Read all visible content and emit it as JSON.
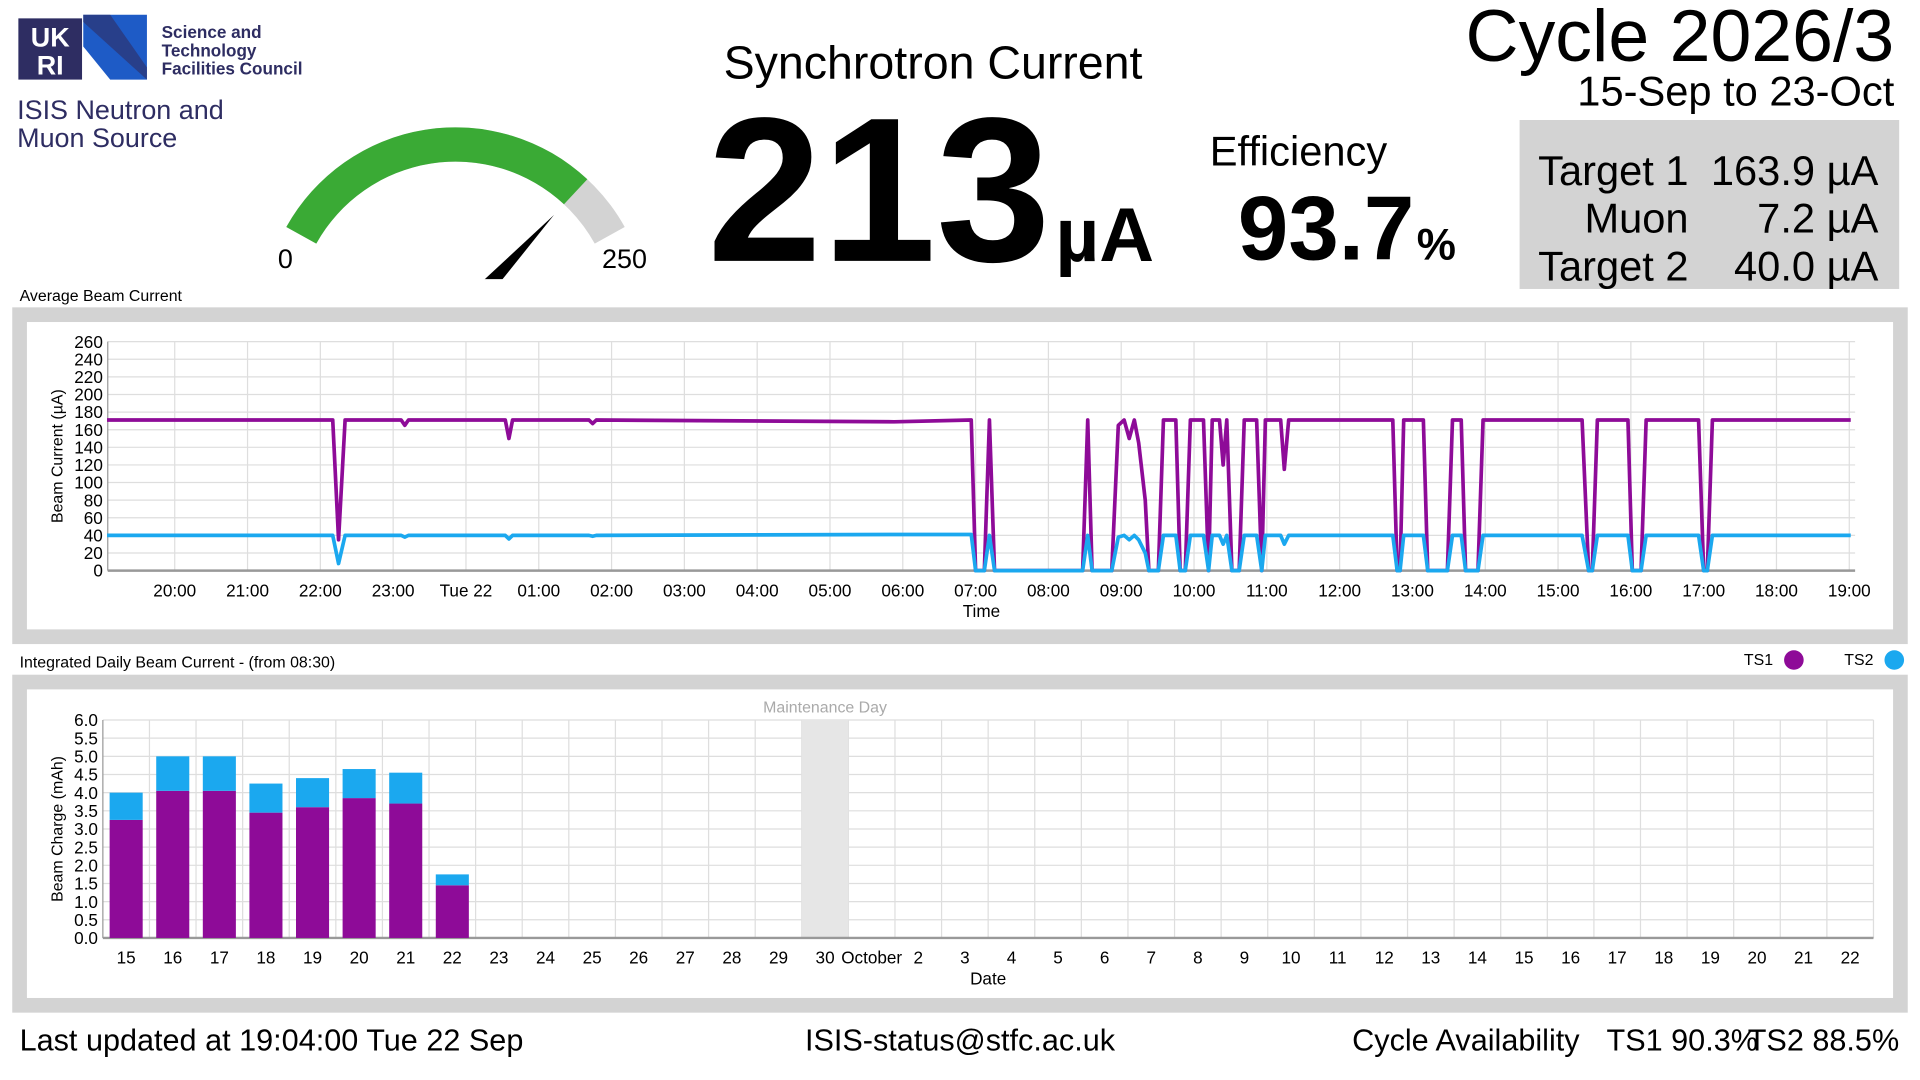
{
  "header": {
    "logo": {
      "top": "UK",
      "bottom": "RI"
    },
    "council": [
      "Science and",
      "Technology",
      "Facilities Council"
    ],
    "source": [
      "ISIS Neutron and",
      "Muon Source"
    ],
    "cycle": "Cycle 2026/3",
    "cycle_dates": "15-Sep to 23-Oct"
  },
  "gauge": {
    "min": 0,
    "max": 250,
    "color": "#3aaa35",
    "track_color": "#d3d3d3"
  },
  "current": {
    "title": "Synchrotron Current",
    "value": 213,
    "unit": "µA"
  },
  "efficiency": {
    "label": "Efficiency",
    "value": 93.7,
    "unit": "%"
  },
  "targets": [
    {
      "name": "Target 1",
      "value": "163.9 µA"
    },
    {
      "name": "Muon",
      "value": "7.2 µA"
    },
    {
      "name": "Target 2",
      "value": "40.0 µA"
    }
  ],
  "chart_data": [
    {
      "type": "line",
      "title": "Average Beam Current",
      "x_label": "Time",
      "y_label": "Beam Current (µA)",
      "x": [
        19.07,
        22.05,
        22.17,
        22.25,
        22.34,
        23.11,
        23.16,
        23.21,
        24.54,
        24.59,
        24.64,
        25.69,
        25.74,
        25.79,
        29.88,
        30.94,
        31.0,
        31.12,
        31.19,
        31.26,
        32.47,
        32.54,
        32.6,
        32.87,
        32.96,
        33.04,
        33.11,
        33.18,
        33.24,
        33.33,
        33.38,
        33.51,
        33.58,
        33.75,
        33.81,
        33.88,
        33.95,
        34.13,
        34.2,
        34.25,
        34.35,
        34.4,
        34.45,
        34.52,
        34.62,
        34.69,
        34.86,
        34.93,
        34.98,
        35.19,
        35.24,
        35.3,
        36.73,
        36.79,
        36.83,
        36.88,
        37.15,
        37.21,
        37.48,
        37.55,
        37.67,
        37.73,
        37.9,
        37.97,
        39.33,
        39.42,
        39.47,
        39.54,
        39.96,
        40.02,
        40.14,
        40.21,
        40.93,
        41.0,
        41.05,
        41.12,
        43.02
      ],
      "series": [
        {
          "color": "#8e0b98",
          "values": [
            171,
            171,
            171,
            35,
            171,
            171,
            165,
            171,
            171,
            150,
            171,
            171,
            167,
            171,
            169,
            171,
            0,
            0,
            171,
            0,
            0,
            171,
            0,
            0,
            165,
            171,
            150,
            171,
            145,
            80,
            0,
            0,
            171,
            171,
            0,
            0,
            171,
            171,
            0,
            171,
            171,
            120,
            171,
            0,
            0,
            171,
            171,
            0,
            171,
            171,
            115,
            171,
            171,
            0,
            0,
            171,
            171,
            0,
            0,
            171,
            171,
            0,
            0,
            171,
            171,
            0,
            0,
            171,
            171,
            0,
            0,
            171,
            171,
            0,
            0,
            171,
            171
          ]
        },
        {
          "color": "#1ba8ef",
          "values": [
            40,
            40,
            40,
            8,
            40,
            40,
            38,
            40,
            40,
            36,
            40,
            40,
            39,
            40,
            41,
            41,
            0,
            0,
            40,
            0,
            0,
            40,
            0,
            0,
            38,
            40,
            35,
            40,
            35,
            20,
            0,
            0,
            40,
            40,
            0,
            0,
            40,
            40,
            0,
            40,
            40,
            30,
            40,
            0,
            0,
            40,
            40,
            0,
            40,
            40,
            30,
            40,
            40,
            0,
            0,
            40,
            40,
            0,
            0,
            40,
            40,
            0,
            0,
            40,
            40,
            0,
            0,
            40,
            40,
            0,
            0,
            40,
            40,
            0,
            0,
            40,
            40
          ]
        }
      ],
      "xlim": [
        19.08,
        43.08
      ],
      "xticks": [
        {
          "value": 20,
          "label": "20:00"
        },
        {
          "value": 21,
          "label": "21:00"
        },
        {
          "value": 22,
          "label": "22:00"
        },
        {
          "value": 23,
          "label": "23:00"
        },
        {
          "value": 24,
          "label": "Tue 22"
        },
        {
          "value": 25,
          "label": "01:00"
        },
        {
          "value": 26,
          "label": "02:00"
        },
        {
          "value": 27,
          "label": "03:00"
        },
        {
          "value": 28,
          "label": "04:00"
        },
        {
          "value": 29,
          "label": "05:00"
        },
        {
          "value": 30,
          "label": "06:00"
        },
        {
          "value": 31,
          "label": "07:00"
        },
        {
          "value": 32,
          "label": "08:00"
        },
        {
          "value": 33,
          "label": "09:00"
        },
        {
          "value": 34,
          "label": "10:00"
        },
        {
          "value": 35,
          "label": "11:00"
        },
        {
          "value": 36,
          "label": "12:00"
        },
        {
          "value": 37,
          "label": "13:00"
        },
        {
          "value": 38,
          "label": "14:00"
        },
        {
          "value": 39,
          "label": "15:00"
        },
        {
          "value": 40,
          "label": "16:00"
        },
        {
          "value": 41,
          "label": "17:00"
        },
        {
          "value": 42,
          "label": "18:00"
        },
        {
          "value": 43,
          "label": "19:00"
        }
      ],
      "ylim": [
        0,
        260
      ],
      "yticks": [
        0,
        20,
        40,
        60,
        80,
        100,
        120,
        140,
        160,
        180,
        200,
        220,
        240,
        260
      ],
      "grid": true
    },
    {
      "type": "bar",
      "stacked": true,
      "title": "Integrated Daily Beam Current - (from 08:30)",
      "x_label": "Date",
      "y_label": "Beam Charge (mAh)",
      "categories": [
        "15",
        "16",
        "17",
        "18",
        "19",
        "20",
        "21",
        "22",
        "23",
        "24",
        "25",
        "26",
        "27",
        "28",
        "29",
        "30",
        "October",
        "2",
        "3",
        "4",
        "5",
        "6",
        "7",
        "8",
        "9",
        "10",
        "11",
        "12",
        "13",
        "14",
        "15",
        "16",
        "17",
        "18",
        "19",
        "20",
        "21",
        "22"
      ],
      "series": [
        {
          "name": "TS1",
          "color": "#8e0b98",
          "values": [
            3.25,
            4.05,
            4.05,
            3.45,
            3.6,
            3.85,
            3.7,
            1.45,
            null,
            null,
            null,
            null,
            null,
            null,
            null,
            null,
            null,
            null,
            null,
            null,
            null,
            null,
            null,
            null,
            null,
            null,
            null,
            null,
            null,
            null,
            null,
            null,
            null,
            null,
            null,
            null,
            null,
            null
          ]
        },
        {
          "name": "TS2",
          "color": "#1ba8ef",
          "values": [
            0.75,
            0.95,
            0.95,
            0.8,
            0.8,
            0.8,
            0.85,
            0.3,
            null,
            null,
            null,
            null,
            null,
            null,
            null,
            null,
            null,
            null,
            null,
            null,
            null,
            null,
            null,
            null,
            null,
            null,
            null,
            null,
            null,
            null,
            null,
            null,
            null,
            null,
            null,
            null,
            null,
            null
          ]
        }
      ],
      "annotations": [
        {
          "text": "Maintenance Day",
          "category": 15,
          "color": "#e6e6e6"
        }
      ],
      "ylim": [
        0,
        6
      ],
      "yticks": [
        {
          "value": 0,
          "label": "0.0"
        },
        0.5,
        {
          "value": 1,
          "label": "1.0"
        },
        1.5,
        {
          "value": 2,
          "label": "2.0"
        },
        2.5,
        {
          "value": 3,
          "label": "3.0"
        },
        3.5,
        {
          "value": 4,
          "label": "4.0"
        },
        4.5,
        {
          "value": 5,
          "label": "5.0"
        },
        5.5,
        {
          "value": 6,
          "label": "6.0"
        }
      ],
      "grid": true,
      "legend": "top-right"
    }
  ],
  "footer": {
    "updated": "Last updated at 19:04:00 Tue 22 Sep",
    "email": "ISIS-status@stfc.ac.uk",
    "availability": "Cycle Availability",
    "ts1": "TS1 90.3%",
    "ts2": "TS2 88.5%"
  }
}
